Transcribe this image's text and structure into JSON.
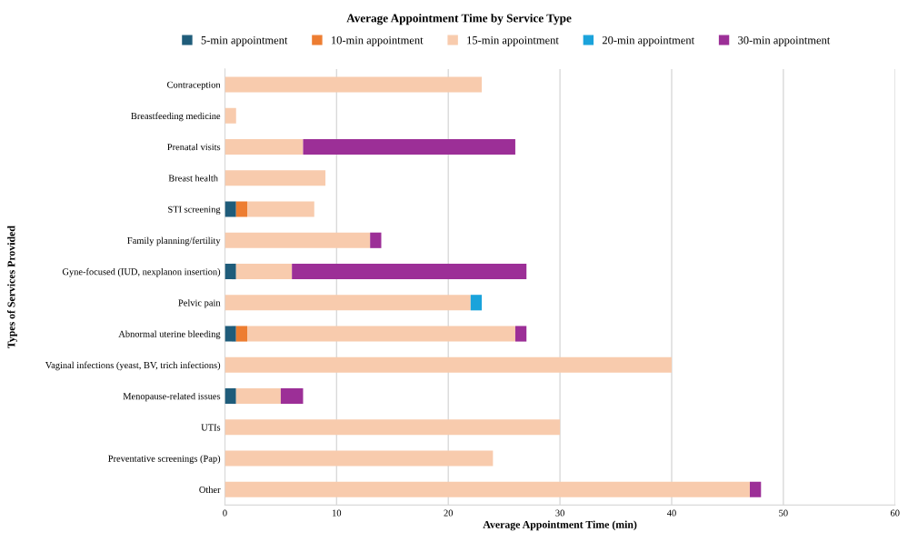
{
  "chart_data": {
    "type": "bar",
    "orientation": "horizontal",
    "stacked": true,
    "title": "Average Appointment Time by Service Type",
    "xlabel": "Average Appointment Time (min)",
    "ylabel": "Types of Services Provided",
    "categories": [
      "Contraception",
      "Breastfeeding medicine",
      "Prenatal visits",
      "Breast health ",
      "STI screening",
      "Family planning/fertility",
      "Gyne-focused (IUD, nexplanon insertion)",
      "Pelvic pain",
      "Abnormal uterine bleeding",
      "Vaginal infections (yeast, BV, trich infections)",
      "Menopause-related issues",
      "UTIs",
      "Preventative screenings (Pap)",
      "Other"
    ],
    "series": [
      {
        "name": "5-min appointment",
        "color": "#1f5c7a",
        "values": [
          null,
          null,
          null,
          null,
          1,
          null,
          1,
          null,
          1,
          null,
          1,
          null,
          null,
          null
        ]
      },
      {
        "name": "10-min appointment",
        "color": "#ed7d31",
        "values": [
          null,
          null,
          null,
          null,
          1,
          null,
          null,
          null,
          1,
          null,
          null,
          null,
          null,
          null
        ]
      },
      {
        "name": "15-min appointment",
        "color": "#f8cbad",
        "values": [
          23,
          1,
          7,
          9,
          6,
          13,
          5,
          22,
          24,
          40,
          4,
          30,
          24,
          47
        ]
      },
      {
        "name": "20-min appointment",
        "color": "#1aa3db",
        "values": [
          null,
          null,
          null,
          null,
          null,
          null,
          null,
          1,
          null,
          null,
          null,
          null,
          null,
          null
        ]
      },
      {
        "name": "30-min appointment",
        "color": "#9c2f97",
        "values": [
          null,
          null,
          19,
          null,
          null,
          1,
          21,
          null,
          1,
          null,
          2,
          null,
          null,
          1
        ]
      }
    ],
    "xlim": [
      0,
      60
    ],
    "xticks": [
      0,
      10,
      20,
      30,
      40,
      50,
      60
    ],
    "grid": "x",
    "legend": "top"
  }
}
